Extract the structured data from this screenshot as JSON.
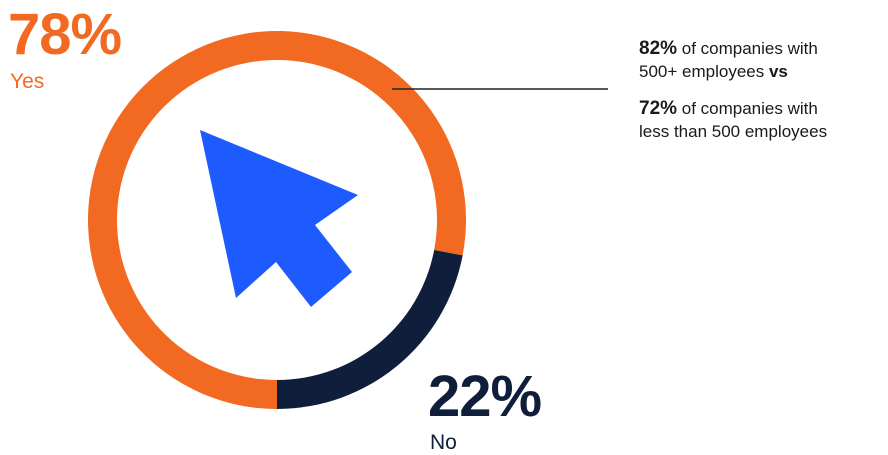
{
  "colors": {
    "yes": "#F26A21",
    "no": "#0F1E3A",
    "cursor": "#1E5BFF",
    "line": "#222222",
    "text": "#1a1a1a"
  },
  "chart_data": {
    "type": "pie",
    "variant": "donut",
    "categories": [
      "Yes",
      "No"
    ],
    "values": [
      78,
      22
    ],
    "value_labels": [
      "78%",
      "22%"
    ],
    "center_icon": "cursor-arrow-icon",
    "annotation": {
      "line1_value": "82%",
      "line1_text": " of companies with",
      "line2_text": "500+ employees ",
      "line2_bold": "vs",
      "line3_value": "72%",
      "line3_text": " of companies with",
      "line4_text": "less than 500 employees"
    }
  }
}
